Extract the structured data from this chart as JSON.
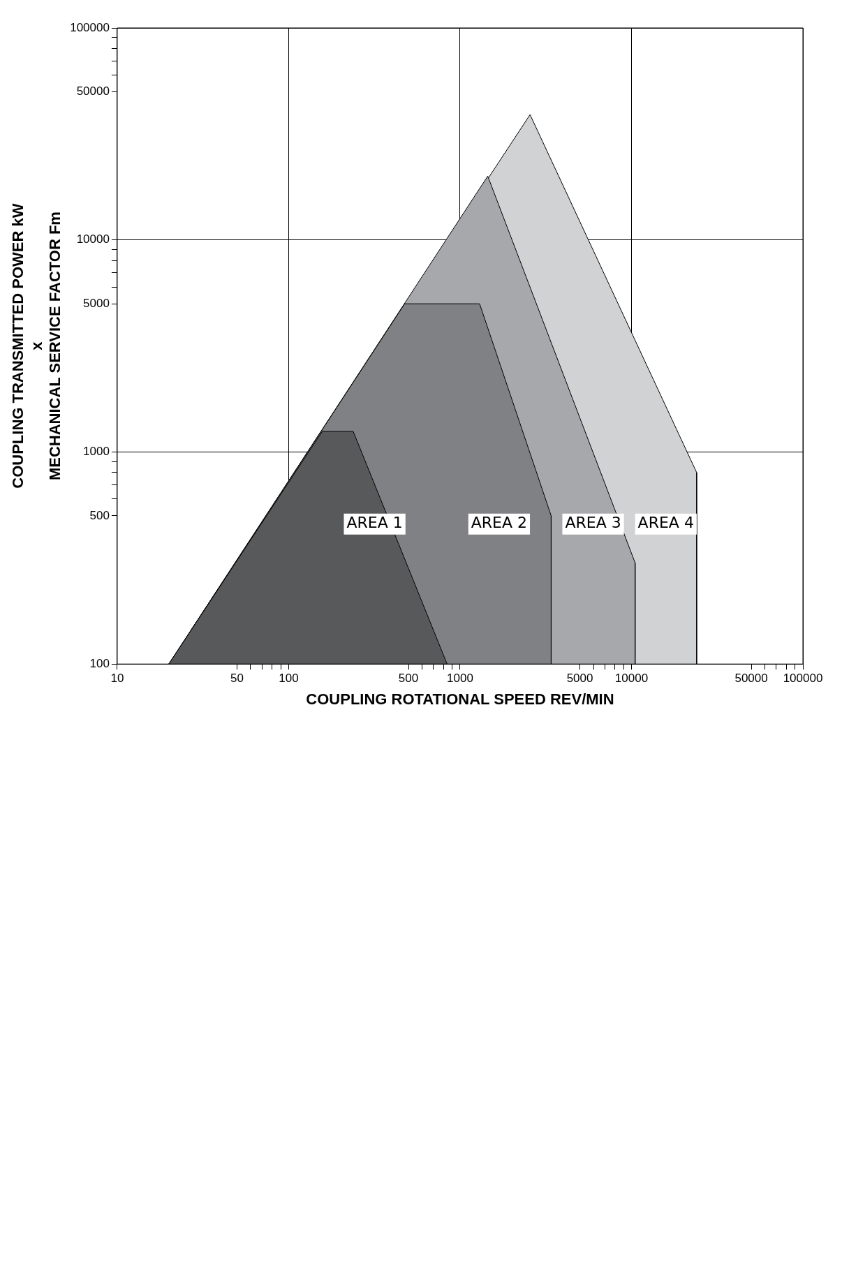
{
  "chart_data": {
    "type": "area",
    "xlabel": "COUPLING ROTATIONAL SPEED REV/MIN",
    "ylabel": "COUPLING TRANSMITTED POWER kW\nx\nMECHANICAL SERVICE FACTOR Fm",
    "log": "xy",
    "grid": true,
    "legend": false,
    "marker": "none",
    "xlim": [
      10,
      100000
    ],
    "ylim": [
      100,
      100000
    ],
    "xticks": [
      10,
      {
        "value": 50,
        "label": "50"
      },
      {
        "value": 60,
        "label": null
      },
      {
        "value": 70,
        "label": null
      },
      {
        "value": 80,
        "label": null
      },
      {
        "value": 90,
        "label": null
      },
      100,
      {
        "value": 500,
        "label": "500"
      },
      {
        "value": 600,
        "label": null
      },
      {
        "value": 700,
        "label": null
      },
      {
        "value": 800,
        "label": null
      },
      {
        "value": 900,
        "label": null
      },
      1000,
      {
        "value": 5000,
        "label": "5000"
      },
      {
        "value": 6000,
        "label": null
      },
      {
        "value": 7000,
        "label": null
      },
      {
        "value": 8000,
        "label": null
      },
      {
        "value": 9000,
        "label": null
      },
      10000,
      {
        "value": 50000,
        "label": "50000"
      },
      {
        "value": 60000,
        "label": null
      },
      {
        "value": 70000,
        "label": null
      },
      {
        "value": 80000,
        "label": null
      },
      {
        "value": 90000,
        "label": null
      },
      100000
    ],
    "yticks": [
      100,
      {
        "value": 500,
        "label": "500"
      },
      {
        "value": 600,
        "label": null
      },
      {
        "value": 700,
        "label": null
      },
      {
        "value": 800,
        "label": null
      },
      {
        "value": 900,
        "label": null
      },
      1000,
      {
        "value": 5000,
        "label": "5000"
      },
      {
        "value": 6000,
        "label": null
      },
      {
        "value": 7000,
        "label": null
      },
      {
        "value": 8000,
        "label": null
      },
      {
        "value": 9000,
        "label": null
      },
      10000,
      {
        "value": 50000,
        "label": "50000"
      },
      {
        "value": 60000,
        "label": null
      },
      {
        "value": 70000,
        "label": null
      },
      {
        "value": 80000,
        "label": null
      },
      {
        "value": 90000,
        "label": null
      },
      100000
    ],
    "series": [
      {
        "name": "AREA 4",
        "color": "#d1d2d4",
        "x": [
          20,
          2560,
          24000,
          24000
        ],
        "values": [
          100,
          39000,
          800,
          100
        ]
      },
      {
        "name": "AREA 3",
        "color": "#a7a8ab",
        "x": [
          20,
          1450,
          10500,
          10500
        ],
        "values": [
          100,
          20000,
          300,
          100
        ]
      },
      {
        "name": "AREA 2",
        "color": "#808184",
        "x": [
          20,
          475,
          1300,
          3400,
          3400
        ],
        "values": [
          100,
          5000,
          5000,
          500,
          100
        ]
      },
      {
        "name": "AREA 1",
        "color": "#58595b",
        "x": [
          20,
          157,
          238,
          840
        ],
        "values": [
          100,
          1250,
          1250,
          100
        ]
      }
    ]
  }
}
